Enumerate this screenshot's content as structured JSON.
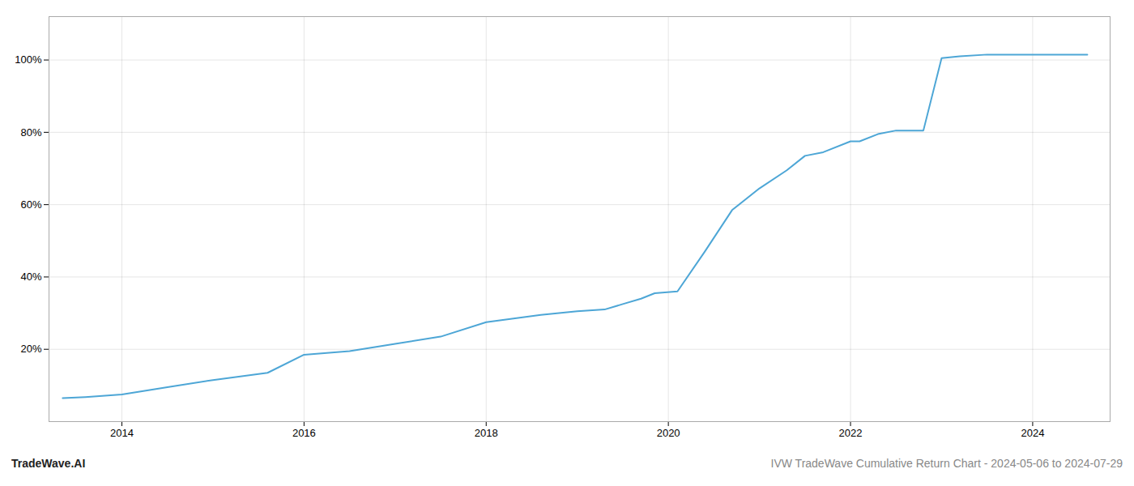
{
  "chart_data": {
    "type": "line",
    "x": [
      2013.35,
      2013.6,
      2014.0,
      2014.5,
      2015.0,
      2015.3,
      2015.6,
      2016.0,
      2016.5,
      2017.0,
      2017.5,
      2018.0,
      2018.3,
      2018.6,
      2019.0,
      2019.3,
      2019.5,
      2019.7,
      2019.85,
      2020.1,
      2020.4,
      2020.7,
      2021.0,
      2021.3,
      2021.5,
      2021.7,
      2022.0,
      2022.1,
      2022.3,
      2022.5,
      2022.8,
      2023.0,
      2023.2,
      2023.5,
      2023.8,
      2024.0,
      2024.3,
      2024.6
    ],
    "values": [
      0.065,
      0.068,
      0.075,
      0.095,
      0.115,
      0.125,
      0.135,
      0.185,
      0.195,
      0.215,
      0.235,
      0.275,
      0.285,
      0.295,
      0.305,
      0.31,
      0.325,
      0.34,
      0.355,
      0.36,
      0.47,
      0.585,
      0.645,
      0.695,
      0.735,
      0.745,
      0.775,
      0.775,
      0.795,
      0.805,
      0.805,
      1.005,
      1.01,
      1.015,
      1.015,
      1.015,
      1.015,
      1.015
    ],
    "color": "#4da6d6",
    "xlim": [
      2013.2,
      2024.85
    ],
    "xticks": [
      2014,
      2016,
      2018,
      2020,
      2022,
      2024
    ],
    "ylim": [
      0.0,
      1.12
    ],
    "yticks": [
      {
        "value": 0.2,
        "label": "20%"
      },
      {
        "value": 0.4,
        "label": "40%"
      },
      {
        "value": 0.6,
        "label": "60%"
      },
      {
        "value": 0.8,
        "label": "80%"
      },
      {
        "value": 1.0,
        "label": "100%"
      }
    ],
    "grid": true,
    "annotations": [
      "TradeWave.AI",
      "IVW TradeWave Cumulative Return Chart - 2024-05-06 to 2024-07-29"
    ]
  }
}
